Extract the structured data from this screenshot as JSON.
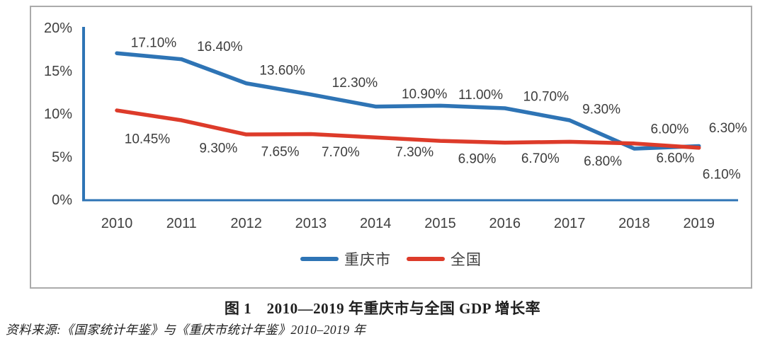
{
  "figure": {
    "caption": "图 1　2010—2019 年重庆市与全国 GDP 增长率",
    "source": "资料来源:《国家统计年鉴》与《重庆市统计年鉴》2010–2019 年"
  },
  "chart_data": {
    "type": "line",
    "title": "",
    "xlabel": "",
    "ylabel": "",
    "categories": [
      "2010",
      "2011",
      "2012",
      "2013",
      "2014",
      "2015",
      "2016",
      "2017",
      "2018",
      "2019"
    ],
    "series": [
      {
        "name": "重庆市",
        "color": "#2e74b5",
        "values": [
          17.1,
          16.4,
          13.6,
          12.3,
          10.9,
          11.0,
          10.7,
          9.3,
          6.0,
          6.3
        ],
        "data_labels": [
          "17.10%",
          "16.40%",
          "13.60%",
          "12.30%",
          "10.90%",
          "11.00%",
          "10.70%",
          "9.30%",
          "6.00%",
          "6.30%"
        ]
      },
      {
        "name": "全国",
        "color": "#dd3b2a",
        "values": [
          10.45,
          9.3,
          7.65,
          7.7,
          7.3,
          6.9,
          6.7,
          6.8,
          6.6,
          6.1
        ],
        "data_labels": [
          "10.45%",
          "9.30%",
          "7.65%",
          "7.70%",
          "7.30%",
          "6.90%",
          "6.70%",
          "6.80%",
          "6.60%",
          "6.10%"
        ]
      }
    ],
    "y_ticks": [
      0,
      5,
      10,
      15,
      20
    ],
    "y_tick_labels": [
      "0%",
      "5%",
      "10%",
      "15%",
      "20%"
    ],
    "ylim": [
      0,
      20
    ],
    "grid": false,
    "legend_position": "bottom-center",
    "axis_color": "#2e74b5",
    "tick_label_color": "#404040",
    "data_label_color": "#3d3d3d"
  }
}
